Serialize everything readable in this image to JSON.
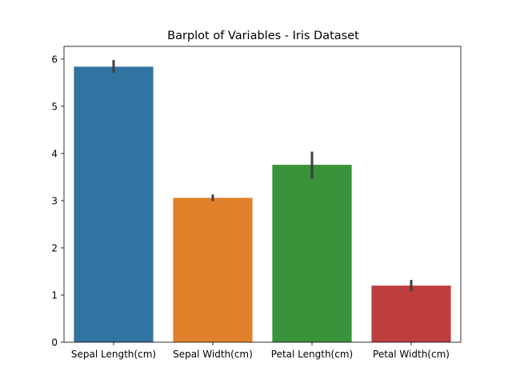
{
  "chart_data": {
    "type": "bar",
    "title": "Barplot of Variables - Iris Dataset",
    "xlabel": "",
    "ylabel": "",
    "categories": [
      "Sepal Length(cm)",
      "Sepal Width(cm)",
      "Petal Length(cm)",
      "Petal Width(cm)"
    ],
    "values": [
      5.84,
      3.06,
      3.76,
      1.2
    ],
    "error_low": [
      5.71,
      2.99,
      3.47,
      1.08
    ],
    "error_high": [
      5.98,
      3.13,
      4.04,
      1.32
    ],
    "colors": [
      "#3274a1",
      "#e1812c",
      "#3a923a",
      "#c03d3e"
    ],
    "error_color": "#3f3f3f",
    "ylim": [
      0,
      6.27
    ],
    "yticks": [
      0,
      1,
      2,
      3,
      4,
      5,
      6
    ],
    "grid": false,
    "legend": "none"
  }
}
